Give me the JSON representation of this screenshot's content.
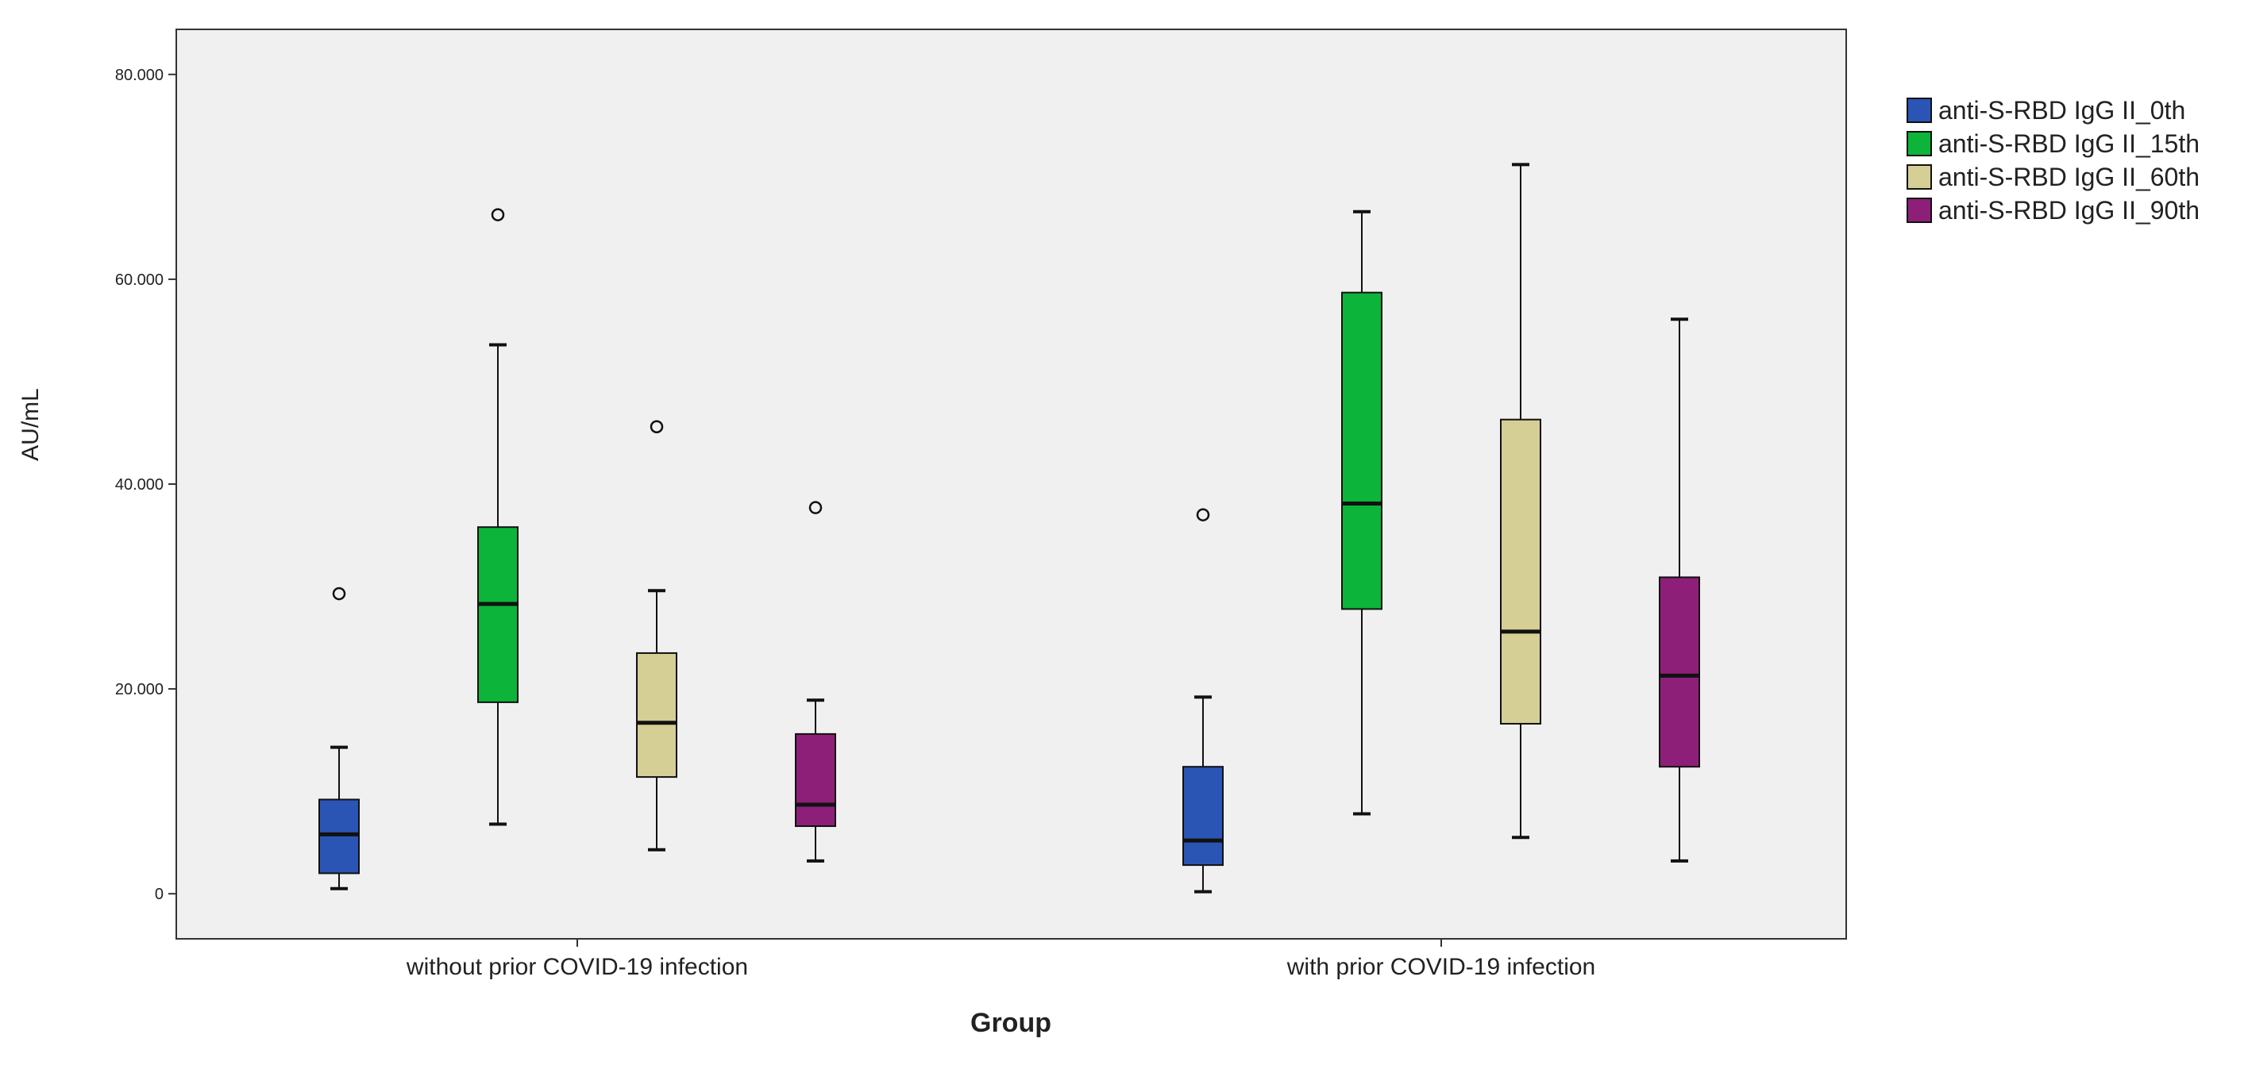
{
  "chart_data": {
    "type": "boxplot",
    "title": "",
    "xlabel": "Group",
    "ylabel": "AU/mL",
    "ylim": [
      -4400,
      84400
    ],
    "yticks": [
      0,
      20000,
      40000,
      60000,
      80000
    ],
    "ytick_labels": [
      "0",
      "20.000",
      "40.000",
      "60.000",
      "80.000"
    ],
    "categories": [
      "without prior COVID-19 infection",
      "with prior COVID-19 infection"
    ],
    "legend_position": "right",
    "plot_background": "#f0f0f0",
    "series": [
      {
        "name": "anti-S-RBD IgG II_0th",
        "color": "#2b55b5",
        "boxes": [
          {
            "whisker_low": 500,
            "q1": 2000,
            "median": 5800,
            "q3": 9200,
            "whisker_high": 14300,
            "outliers": [
              29300
            ]
          },
          {
            "whisker_low": 200,
            "q1": 2800,
            "median": 5200,
            "q3": 12400,
            "whisker_high": 19200,
            "outliers": [
              37000
            ]
          }
        ]
      },
      {
        "name": "anti-S-RBD IgG II_15th",
        "color": "#0db43a",
        "boxes": [
          {
            "whisker_low": 6800,
            "q1": 18700,
            "median": 28300,
            "q3": 35800,
            "whisker_high": 53600,
            "outliers": [
              66300
            ]
          },
          {
            "whisker_low": 7800,
            "q1": 27800,
            "median": 38100,
            "q3": 58700,
            "whisker_high": 66600,
            "outliers": []
          }
        ]
      },
      {
        "name": "anti-S-RBD IgG II_60th",
        "color": "#d5cf96",
        "boxes": [
          {
            "whisker_low": 4300,
            "q1": 11400,
            "median": 16700,
            "q3": 23500,
            "whisker_high": 29600,
            "outliers": [
              45600
            ]
          },
          {
            "whisker_low": 5500,
            "q1": 16600,
            "median": 25600,
            "q3": 46300,
            "whisker_high": 71200,
            "outliers": []
          }
        ]
      },
      {
        "name": "anti-S-RBD IgG II_90th",
        "color": "#8e1f78",
        "boxes": [
          {
            "whisker_low": 3200,
            "q1": 6600,
            "median": 8700,
            "q3": 15600,
            "whisker_high": 18900,
            "outliers": [
              37700
            ]
          },
          {
            "whisker_low": 3200,
            "q1": 12400,
            "median": 21300,
            "q3": 30900,
            "whisker_high": 56100,
            "outliers": []
          }
        ]
      }
    ]
  }
}
